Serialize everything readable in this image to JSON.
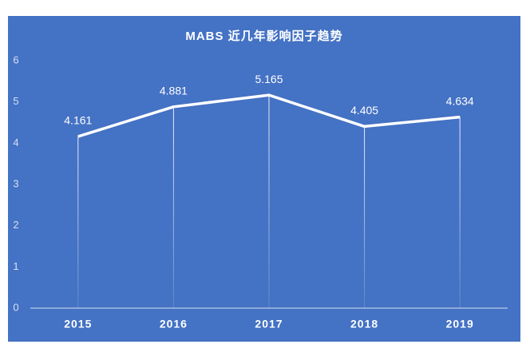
{
  "chart_data": {
    "type": "line",
    "title": "MABS 近几年影响因子趋势",
    "categories": [
      "2015",
      "2016",
      "2017",
      "2018",
      "2019"
    ],
    "values": [
      4.161,
      4.881,
      5.165,
      4.405,
      4.634
    ],
    "color": "#ffffff",
    "background": "#4472c4",
    "ylim": [
      0,
      6
    ],
    "yticks": [
      0,
      1,
      2,
      3,
      4,
      5,
      6
    ],
    "drop_lines": true
  }
}
